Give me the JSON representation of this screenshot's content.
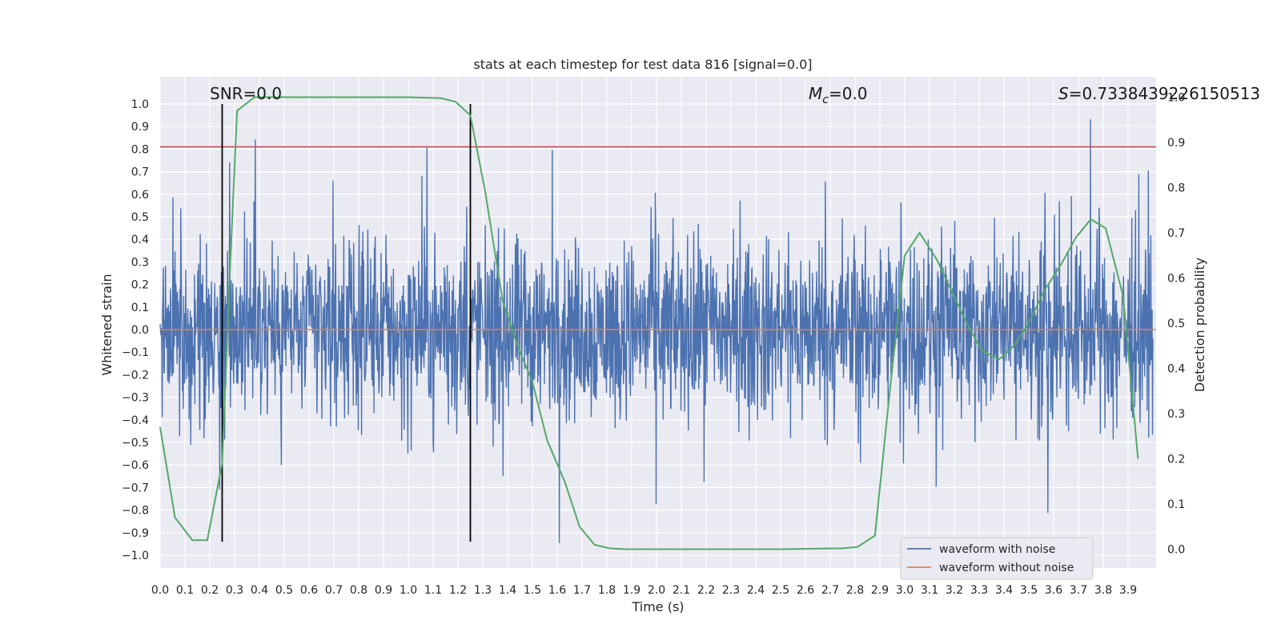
{
  "chart_data": {
    "type": "line",
    "title": "stats at each timestep for test data 816 [signal=0.0]",
    "xlabel": "Time (s)",
    "ylabel": "Whitened strain",
    "y2label": "Detection probability",
    "xlim": [
      0.0,
      4.0
    ],
    "ylim": [
      -1.07,
      1.1
    ],
    "y2lim": [
      -0.05,
      1.05
    ],
    "xticks": [
      "0.0",
      "0.1",
      "0.2",
      "0.3",
      "0.4",
      "0.5",
      "0.6",
      "0.7",
      "0.8",
      "0.9",
      "1.0",
      "1.1",
      "1.2",
      "1.3",
      "1.4",
      "1.5",
      "1.6",
      "1.7",
      "1.8",
      "1.9",
      "2.0",
      "2.1",
      "2.2",
      "2.3",
      "2.4",
      "2.5",
      "2.6",
      "2.7",
      "2.8",
      "2.9",
      "3.0",
      "3.1",
      "3.2",
      "3.3",
      "3.4",
      "3.5",
      "3.6",
      "3.7",
      "3.8",
      "3.9"
    ],
    "yticks": [
      "1.0",
      "0.9",
      "0.8",
      "0.7",
      "0.6",
      "0.5",
      "0.4",
      "0.3",
      "0.2",
      "0.1",
      "0.0",
      "−0.1",
      "−0.2",
      "−0.3",
      "−0.4",
      "−0.5",
      "−0.6",
      "−0.7",
      "−0.8",
      "−0.9",
      "−1.0"
    ],
    "y2ticks": [
      "1.0",
      "0.9",
      "0.8",
      "0.7",
      "0.6",
      "0.5",
      "0.4",
      "0.3",
      "0.2",
      "0.1",
      "0.0"
    ],
    "grid": true,
    "legend_position": "lower-right",
    "annotations": {
      "snr": "SNR=0.0",
      "mc_symbol": "M",
      "mc_sub": "c",
      "mc_value": "=0.0",
      "s_symbol": "S",
      "s_value": "=0.7338439226150513"
    },
    "threshold": 0.81,
    "vlines": [
      0.25,
      1.25
    ],
    "noise_envelope": {
      "typical_abs": 0.4,
      "max_abs": 0.95
    },
    "series": [
      {
        "name": "waveform with noise",
        "color": "#4c72b0"
      },
      {
        "name": "waveform without noise",
        "color": "#dd8452",
        "constant": 0.0
      },
      {
        "color": "#55a868",
        "axis": "right",
        "x": [
          0.0,
          0.06,
          0.13,
          0.19,
          0.25,
          0.28,
          0.31,
          0.38,
          0.5,
          0.75,
          1.0,
          1.13,
          1.19,
          1.25,
          1.31,
          1.38,
          1.44,
          1.5,
          1.56,
          1.63,
          1.69,
          1.75,
          1.81,
          1.88,
          2.0,
          2.5,
          2.75,
          2.81,
          2.88,
          2.94,
          3.0,
          3.06,
          3.13,
          3.19,
          3.25,
          3.31,
          3.38,
          3.44,
          3.5,
          3.56,
          3.63,
          3.69,
          3.75,
          3.81,
          3.88,
          3.94
        ],
        "y": [
          0.27,
          0.07,
          0.02,
          0.02,
          0.19,
          0.6,
          0.97,
          1.0,
          1.0,
          1.0,
          1.0,
          0.998,
          0.99,
          0.96,
          0.79,
          0.55,
          0.45,
          0.37,
          0.24,
          0.15,
          0.05,
          0.01,
          0.002,
          0.0,
          0.0,
          0.0,
          0.002,
          0.005,
          0.03,
          0.35,
          0.65,
          0.7,
          0.64,
          0.57,
          0.5,
          0.44,
          0.42,
          0.45,
          0.5,
          0.57,
          0.63,
          0.69,
          0.73,
          0.71,
          0.56,
          0.2
        ]
      }
    ]
  }
}
